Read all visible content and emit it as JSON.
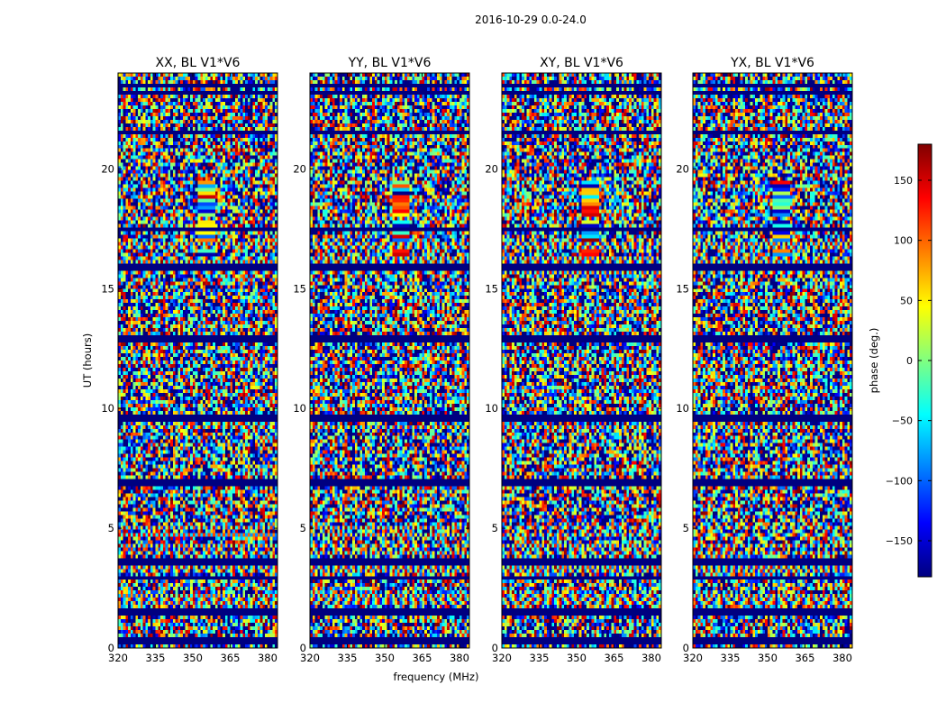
{
  "figure": {
    "suptitle": "2016-10-29 0.0-24.0",
    "xlabel": "frequency (MHz)",
    "ylabel": "UT (hours)"
  },
  "chart_data": {
    "type": "heatmap",
    "colormap": "jet",
    "x_ticks": [
      "320",
      "335",
      "350",
      "365",
      "380"
    ],
    "x_tick_values": [
      320,
      335,
      350,
      365,
      380
    ],
    "xlim": [
      320,
      384
    ],
    "y_ticks": [
      "0",
      "5",
      "10",
      "15",
      "20"
    ],
    "y_tick_values": [
      0,
      5,
      10,
      15,
      20
    ],
    "ylim": [
      0,
      24
    ],
    "panels": [
      {
        "title": "XX, BL V1*V6",
        "rfi_band_mhz": [
          352,
          359
        ],
        "rfi_hours": [
          15.7,
          19.5
        ]
      },
      {
        "title": "YY, BL V1*V6",
        "rfi_band_mhz": [
          353,
          360
        ],
        "rfi_hours": [
          15.7,
          19.5
        ]
      },
      {
        "title": "XY, BL V1*V6",
        "rfi_band_mhz": [
          352,
          359
        ],
        "rfi_hours": [
          15.7,
          19.5
        ]
      },
      {
        "title": "YX, BL V1*V6",
        "rfi_band_mhz": [
          352,
          359
        ],
        "rfi_hours": [
          15.7,
          19.5
        ]
      }
    ],
    "flagged_rows_hours": [
      0.3,
      1.5,
      2.9,
      3.6,
      6.8,
      7.0,
      9.6,
      12.9,
      15.9,
      17.5,
      21.5,
      23.2,
      23.5
    ],
    "striped_rows_hours": [
      1.9,
      2.1,
      3.3,
      4.0,
      4.3,
      4.7,
      5.0,
      9.2,
      9.5,
      11.9,
      15.7,
      16.2,
      16.8,
      17.9
    ],
    "colorbar": {
      "label": "phase (deg.)",
      "range": [
        -180,
        180
      ],
      "ticks": [
        "150",
        "100",
        "50",
        "0",
        "−50",
        "−100",
        "−150"
      ],
      "tick_values": [
        150,
        100,
        50,
        0,
        -50,
        -100,
        -150
      ]
    }
  }
}
